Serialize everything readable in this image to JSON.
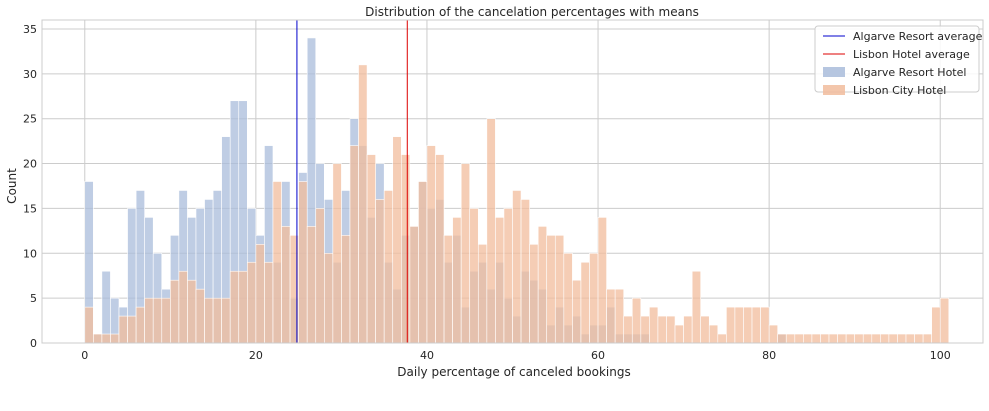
{
  "chart_data": {
    "type": "bar",
    "title": "Distribution of the cancelation percentages with means",
    "xlabel": "Daily percentage of canceled bookings",
    "ylabel": "Count",
    "xlim": [
      -5,
      105
    ],
    "ylim": [
      0,
      36
    ],
    "xticks": [
      0,
      20,
      40,
      60,
      80,
      100
    ],
    "yticks": [
      0,
      5,
      10,
      15,
      20,
      25,
      30,
      35
    ],
    "grid": true,
    "legend_position": "top-right",
    "bin_start": 0,
    "bin_width": 1,
    "series": [
      {
        "name": "Algarve Resort Hotel",
        "color": "#a9bcdb",
        "values": [
          18,
          1,
          8,
          5,
          4,
          15,
          17,
          14,
          10,
          6,
          12,
          17,
          14,
          15,
          16,
          17,
          23,
          27,
          27,
          15,
          12,
          22,
          9,
          18,
          5,
          19,
          34,
          20,
          16,
          9,
          17,
          25,
          22,
          14,
          20,
          9,
          6,
          12,
          13,
          18,
          15,
          16,
          9,
          12,
          4,
          8,
          9,
          6,
          9,
          5,
          3,
          8,
          7,
          6,
          2,
          4,
          2,
          3,
          1,
          2,
          2,
          4,
          1,
          1,
          1,
          1,
          0,
          0,
          0,
          0,
          0,
          0,
          0,
          0,
          0,
          0,
          0,
          0,
          0,
          0,
          0,
          1,
          0,
          0,
          0,
          0,
          0,
          0,
          0,
          0,
          0,
          0,
          0,
          0,
          0,
          0,
          0,
          0,
          0,
          0,
          0
        ]
      },
      {
        "name": "Lisbon City Hotel",
        "color": "#f1bc9c",
        "values": [
          4,
          1,
          1,
          1,
          3,
          3,
          4,
          5,
          5,
          5,
          7,
          8,
          7,
          6,
          5,
          5,
          5,
          8,
          8,
          9,
          11,
          9,
          18,
          13,
          12,
          18,
          13,
          15,
          10,
          20,
          12,
          22,
          31,
          21,
          16,
          17,
          23,
          21,
          13,
          18,
          22,
          21,
          12,
          14,
          20,
          15,
          11,
          25,
          14,
          15,
          17,
          16,
          11,
          13,
          12,
          12,
          10,
          7,
          9,
          10,
          14,
          6,
          6,
          3,
          5,
          3,
          4,
          3,
          3,
          2,
          3,
          8,
          3,
          2,
          1,
          4,
          4,
          4,
          4,
          4,
          2,
          1,
          1,
          1,
          1,
          1,
          1,
          1,
          1,
          1,
          1,
          1,
          1,
          1,
          1,
          1,
          1,
          1,
          1,
          4,
          5
        ]
      }
    ],
    "means": [
      {
        "name": "Algarve Resort average",
        "value": 24.8,
        "color": "#0000cc"
      },
      {
        "name": "Lisbon Hotel average",
        "value": 37.7,
        "color": "#dd0000"
      }
    ]
  }
}
